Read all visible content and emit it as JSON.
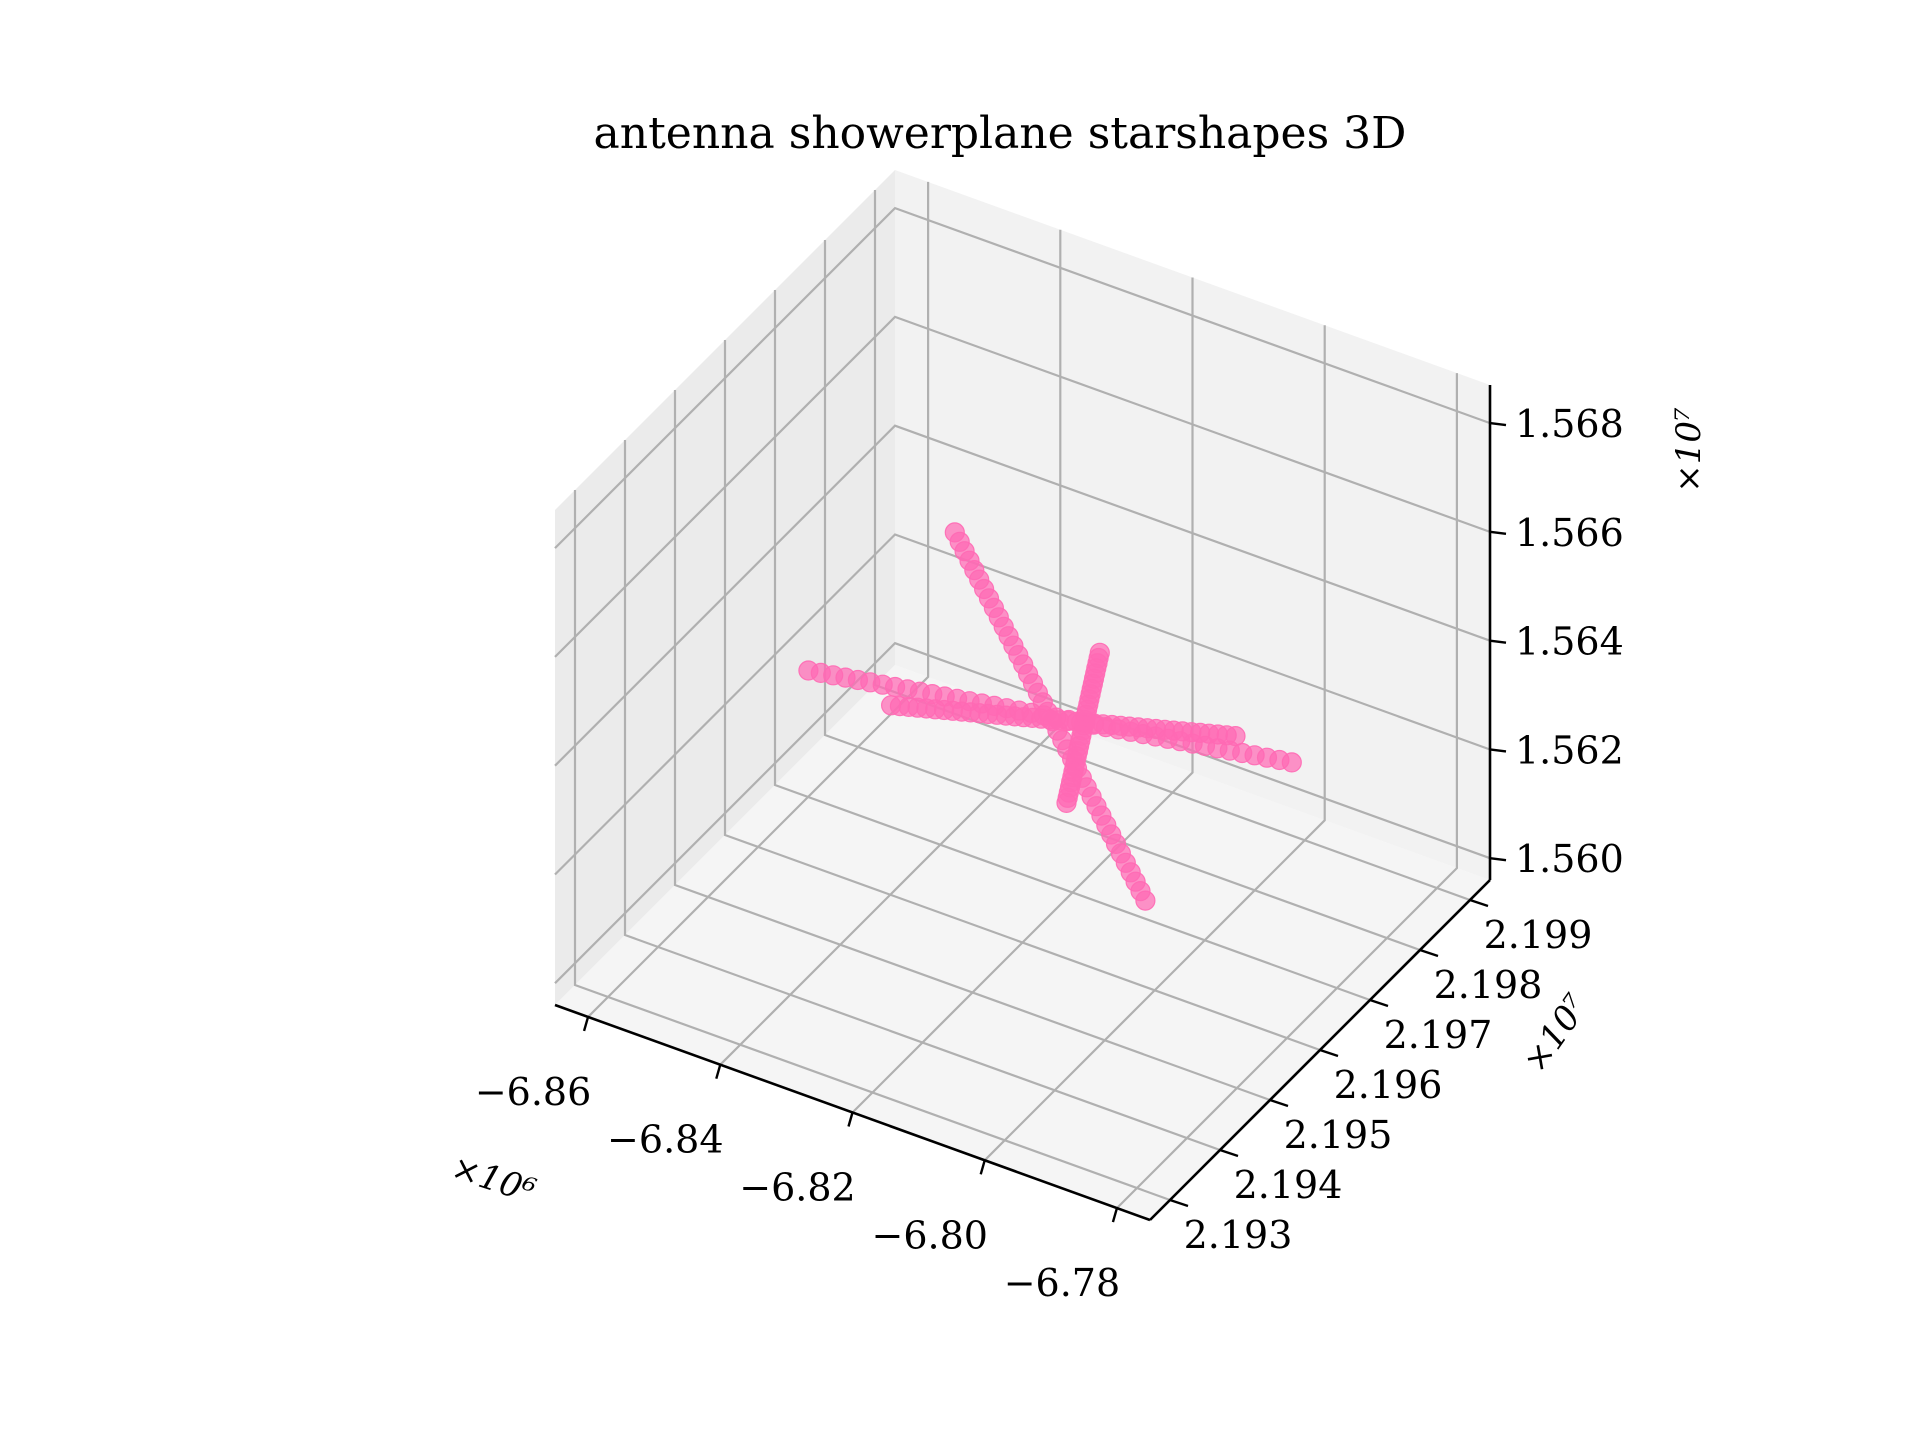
{
  "chart_data": {
    "type": "scatter",
    "title": "antenna showerplane starshapes 3D",
    "xlabel": "",
    "ylabel": "",
    "zlabel": "",
    "x_scale_label": "×10⁶",
    "y_scale_label": "×10⁷",
    "z_scale_label": "×10⁷",
    "x_ticks": [
      "−6.86",
      "−6.84",
      "−6.82",
      "−6.80",
      "−6.78"
    ],
    "y_ticks": [
      "2.193",
      "2.194",
      "2.195",
      "2.196",
      "2.197",
      "2.198",
      "2.199"
    ],
    "z_ticks": [
      "1.560",
      "1.562",
      "1.564",
      "1.566",
      "1.568"
    ],
    "xlim": [
      -6.865,
      -6.775
    ],
    "ylim": [
      2.1926,
      2.1994
    ],
    "zlim": [
      1.5596,
      1.5687
    ],
    "grid": true,
    "marker_color": "#ff69b4",
    "arms": [
      {
        "from": [
          -6.8505,
          2.19575,
          1.56349
        ],
        "to": [
          -6.7925,
          2.19775,
          1.56251
        ],
        "points": 40
      },
      {
        "from": [
          -6.8465,
          2.19815,
          1.564
        ],
        "to": [
          -6.7965,
          2.19535,
          1.562
        ],
        "points": 40
      },
      {
        "from": [
          -6.8395,
          2.19595,
          1.56315
        ],
        "to": [
          -6.7995,
          2.19755,
          1.56287
        ],
        "points": 40
      },
      {
        "from": [
          -6.8155,
          2.19695,
          1.56425
        ],
        "to": [
          -6.8175,
          2.19655,
          1.56177
        ],
        "points": 30
      }
    ]
  },
  "colors": {
    "marker": "#ff69b4",
    "pane_back": "#f2f2f2",
    "pane_side": "#ebebeb",
    "pane_floor": "#f5f5f5",
    "grid": "#b0b0b0",
    "axis": "#000000"
  }
}
